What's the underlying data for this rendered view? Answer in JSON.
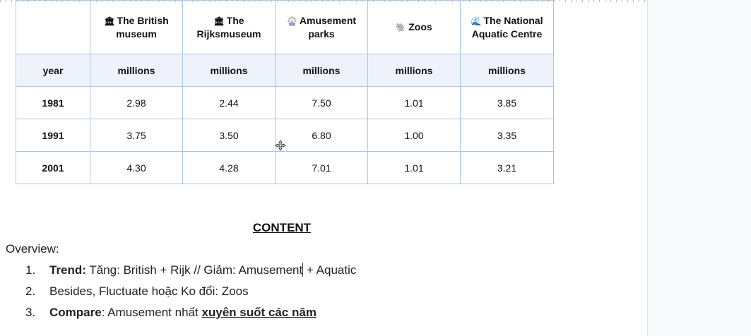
{
  "table": {
    "headers": [
      {
        "icon": "museum-icon",
        "glyph": "🏛",
        "label": "The British museum"
      },
      {
        "icon": "museum-icon",
        "glyph": "🏛",
        "label": "The Rijksmuseum"
      },
      {
        "icon": "ferris-wheel-icon",
        "glyph": "🎡",
        "label": "Amusement parks"
      },
      {
        "icon": "elephant-icon",
        "glyph": "🐘",
        "label": "Zoos"
      },
      {
        "icon": "wave-icon",
        "glyph": "🌊",
        "label": "The National Aquatic Centre"
      }
    ],
    "units_row": {
      "year_label": "year",
      "unit": "millions"
    },
    "rows": [
      {
        "year": "1981",
        "values": [
          "2.98",
          "2.44",
          "7.50",
          "1.01",
          "3.85"
        ]
      },
      {
        "year": "1991",
        "values": [
          "3.75",
          "3.50",
          "6.80",
          "1.00",
          "3.35"
        ]
      },
      {
        "year": "2001",
        "values": [
          "4.30",
          "4.28",
          "7.01",
          "1.01",
          "3.21"
        ]
      }
    ]
  },
  "content": {
    "title": "CONTENT",
    "overview_label": "Overview:",
    "points": [
      {
        "num": "1.",
        "bold": "Trend:",
        "text_a": " Tăng: British + Rijk // Giảm: Amusement",
        "text_b": " + Aquatic"
      },
      {
        "num": "2.",
        "text": "Besides, Fluctuate hoặc Ko đổi: Zoos"
      },
      {
        "num": "3.",
        "bold": "Compare",
        "text": ": Amusement nhất ",
        "underlined": "xuyên suốt các năm"
      }
    ]
  }
}
